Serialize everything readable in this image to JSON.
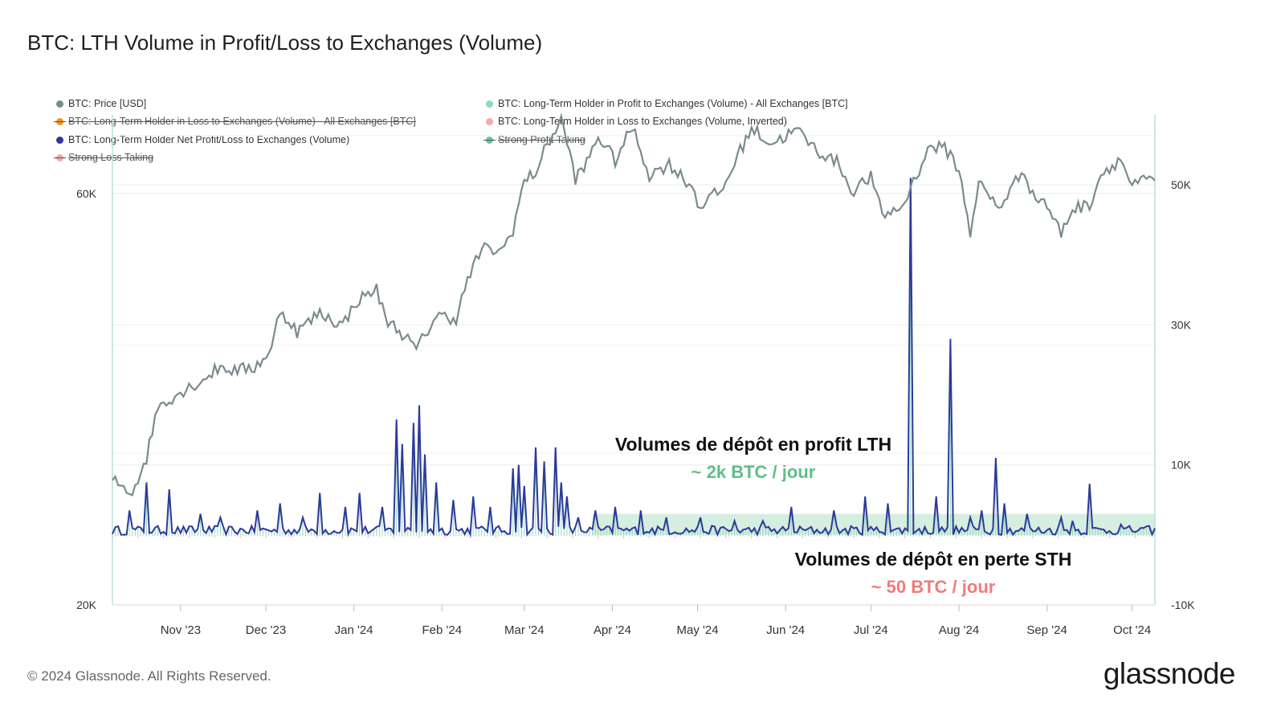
{
  "title": "BTC: LTH Volume in Profit/Loss to Exchanges (Volume)",
  "legend": [
    {
      "label": "BTC: Price [USD]",
      "color": "#7a8b8e",
      "disabled": false
    },
    {
      "label": "BTC: Long-Term Holder in Profit to Exchanges (Volume) - All Exchanges [BTC]",
      "color": "#8fd9bf",
      "disabled": false
    },
    {
      "label": "BTC: Long-Term Holder in Loss to Exchanges (Volume) - All Exchanges [BTC]",
      "color": "#f7931a",
      "disabled": true
    },
    {
      "label": "BTC: Long-Term Holder in Loss to Exchanges (Volume, Inverted)",
      "color": "#f5a8a8",
      "disabled": false
    },
    {
      "label": "BTC: Long-Term Holder Net Profit/Loss to Exchanges (Volume)",
      "color": "#2b3a9a",
      "disabled": false
    },
    {
      "label": "Strong Profit Taking",
      "color": "#6cc2a0",
      "disabled": true
    },
    {
      "label": "Strong Loss Taking",
      "color": "#f5a8a8",
      "disabled": true
    }
  ],
  "annotations": {
    "profit_title": "Volumes de dépôt en profit LTH",
    "profit_value": "~ 2k BTC / jour",
    "loss_title": "Volumes de dépôt en perte STH",
    "loss_value": "~ 50 BTC / jour"
  },
  "footer": "© 2024 Glassnode. All Rights Reserved.",
  "logo": "glassnode",
  "chart_data": {
    "type": "line",
    "x_ticks": [
      "Nov '23",
      "Dec '23",
      "Jan '24",
      "Feb '24",
      "Mar '24",
      "Apr '24",
      "May '24",
      "Jun '24",
      "Jul '24",
      "Aug '24",
      "Sep '24",
      "Oct '24"
    ],
    "x_range": [
      "2023-10-08",
      "2024-10-09"
    ],
    "left_axis": {
      "scale": "log",
      "ticks": [
        "20K",
        "60K"
      ],
      "range": [
        20000,
        74000
      ]
    },
    "right_axis": {
      "scale": "linear",
      "ticks": [
        "-10K",
        "10K",
        "30K",
        "50K"
      ],
      "range": [
        -10000,
        60000
      ]
    },
    "grid": true,
    "series": [
      {
        "name": "BTC: Price [USD]",
        "axis": "left",
        "color": "#7a8b8e",
        "points": [
          [
            "2023-10-08",
            27900
          ],
          [
            "2023-10-15",
            27000
          ],
          [
            "2023-10-20",
            29600
          ],
          [
            "2023-10-24",
            34000
          ],
          [
            "2023-11-01",
            35300
          ],
          [
            "2023-11-09",
            36500
          ],
          [
            "2023-11-15",
            37800
          ],
          [
            "2023-11-20",
            37400
          ],
          [
            "2023-11-27",
            37700
          ],
          [
            "2023-12-03",
            39500
          ],
          [
            "2023-12-06",
            44000
          ],
          [
            "2023-12-12",
            41500
          ],
          [
            "2023-12-20",
            43600
          ],
          [
            "2023-12-28",
            42200
          ],
          [
            "2024-01-02",
            45000
          ],
          [
            "2024-01-09",
            46500
          ],
          [
            "2024-01-12",
            43000
          ],
          [
            "2024-01-18",
            41300
          ],
          [
            "2024-01-23",
            39500
          ],
          [
            "2024-01-30",
            43300
          ],
          [
            "2024-02-06",
            43000
          ],
          [
            "2024-02-10",
            47500
          ],
          [
            "2024-02-15",
            51800
          ],
          [
            "2024-02-22",
            51400
          ],
          [
            "2024-02-26",
            54500
          ],
          [
            "2024-03-01",
            62000
          ],
          [
            "2024-03-05",
            63500
          ],
          [
            "2024-03-09",
            68300
          ],
          [
            "2024-03-14",
            73000
          ],
          [
            "2024-03-19",
            62500
          ],
          [
            "2024-03-22",
            64000
          ],
          [
            "2024-03-27",
            69900
          ],
          [
            "2024-04-02",
            65500
          ],
          [
            "2024-04-08",
            71600
          ],
          [
            "2024-04-14",
            63000
          ],
          [
            "2024-04-21",
            64900
          ],
          [
            "2024-04-30",
            60600
          ],
          [
            "2024-05-01",
            57900
          ],
          [
            "2024-05-10",
            60700
          ],
          [
            "2024-05-15",
            66200
          ],
          [
            "2024-05-20",
            71400
          ],
          [
            "2024-05-27",
            68500
          ],
          [
            "2024-06-05",
            71100
          ],
          [
            "2024-06-12",
            67300
          ],
          [
            "2024-06-20",
            64900
          ],
          [
            "2024-06-24",
            60300
          ],
          [
            "2024-07-01",
            62700
          ],
          [
            "2024-07-05",
            56600
          ],
          [
            "2024-07-12",
            57800
          ],
          [
            "2024-07-18",
            64000
          ],
          [
            "2024-07-22",
            68200
          ],
          [
            "2024-07-27",
            67500
          ],
          [
            "2024-07-30",
            66200
          ],
          [
            "2024-08-02",
            61500
          ],
          [
            "2024-08-05",
            54000
          ],
          [
            "2024-08-08",
            61700
          ],
          [
            "2024-08-15",
            57600
          ],
          [
            "2024-08-24",
            64100
          ],
          [
            "2024-08-27",
            59500
          ],
          [
            "2024-08-31",
            58900
          ],
          [
            "2024-09-06",
            53900
          ],
          [
            "2024-09-10",
            57600
          ],
          [
            "2024-09-16",
            58200
          ],
          [
            "2024-09-20",
            63200
          ],
          [
            "2024-09-27",
            65800
          ],
          [
            "2024-10-01",
            61000
          ],
          [
            "2024-10-05",
            62100
          ],
          [
            "2024-10-09",
            62100
          ]
        ]
      },
      {
        "name": "BTC: Long-Term Holder Net Profit/Loss to Exchanges (Volume)",
        "axis": "right",
        "color": "#2b3a9a",
        "baseline_daily": 500,
        "spikes": [
          [
            "2023-10-14",
            3500
          ],
          [
            "2023-10-20",
            7500
          ],
          [
            "2023-10-28",
            6500
          ],
          [
            "2023-11-08",
            3000
          ],
          [
            "2023-11-15",
            2500
          ],
          [
            "2023-11-28",
            3500
          ],
          [
            "2023-12-06",
            4500
          ],
          [
            "2023-12-14",
            2500
          ],
          [
            "2023-12-20",
            6000
          ],
          [
            "2023-12-29",
            4000
          ],
          [
            "2024-01-03",
            6000
          ],
          [
            "2024-01-11",
            4000
          ],
          [
            "2024-01-16",
            16500
          ],
          [
            "2024-01-18",
            13000
          ],
          [
            "2024-01-22",
            16000
          ],
          [
            "2024-01-24",
            18500
          ],
          [
            "2024-01-26",
            11500
          ],
          [
            "2024-01-30",
            7500
          ],
          [
            "2024-02-05",
            5000
          ],
          [
            "2024-02-12",
            5500
          ],
          [
            "2024-02-18",
            4000
          ],
          [
            "2024-02-26",
            9500
          ],
          [
            "2024-02-28",
            10000
          ],
          [
            "2024-03-01",
            7000
          ],
          [
            "2024-03-05",
            12500
          ],
          [
            "2024-03-08",
            10500
          ],
          [
            "2024-03-12",
            12500
          ],
          [
            "2024-03-14",
            7500
          ],
          [
            "2024-03-16",
            5500
          ],
          [
            "2024-03-20",
            2500
          ],
          [
            "2024-03-26",
            3500
          ],
          [
            "2024-04-02",
            4000
          ],
          [
            "2024-04-11",
            3500
          ],
          [
            "2024-04-20",
            2500
          ],
          [
            "2024-05-02",
            2500
          ],
          [
            "2024-05-14",
            2000
          ],
          [
            "2024-05-24",
            2000
          ],
          [
            "2024-06-03",
            4000
          ],
          [
            "2024-06-18",
            3500
          ],
          [
            "2024-06-29",
            5500
          ],
          [
            "2024-07-07",
            4500
          ],
          [
            "2024-07-15",
            51000
          ],
          [
            "2024-07-24",
            5500
          ],
          [
            "2024-07-29",
            28000
          ],
          [
            "2024-08-05",
            2500
          ],
          [
            "2024-08-09",
            3500
          ],
          [
            "2024-08-14",
            11000
          ],
          [
            "2024-08-17",
            4500
          ],
          [
            "2024-08-25",
            3000
          ],
          [
            "2024-09-06",
            2500
          ],
          [
            "2024-09-10",
            2000
          ],
          [
            "2024-09-16",
            7300
          ],
          [
            "2024-09-27",
            1500
          ],
          [
            "2024-10-04",
            1000
          ]
        ]
      },
      {
        "name": "BTC: Long-Term Holder in Profit to Exchanges (Volume) - All Exchanges [BTC]",
        "axis": "right",
        "color": "#8fd9bf",
        "typical_daily": 2000
      },
      {
        "name": "BTC: Long-Term Holder in Loss to Exchanges (Volume, Inverted)",
        "axis": "right",
        "color": "#f5a8a8",
        "typical_daily": -50
      }
    ],
    "bands": [
      {
        "from": "2024-03-25",
        "to": "2024-10-09",
        "y_range": [
          0,
          3000
        ],
        "color": "#d6eee0"
      }
    ]
  }
}
